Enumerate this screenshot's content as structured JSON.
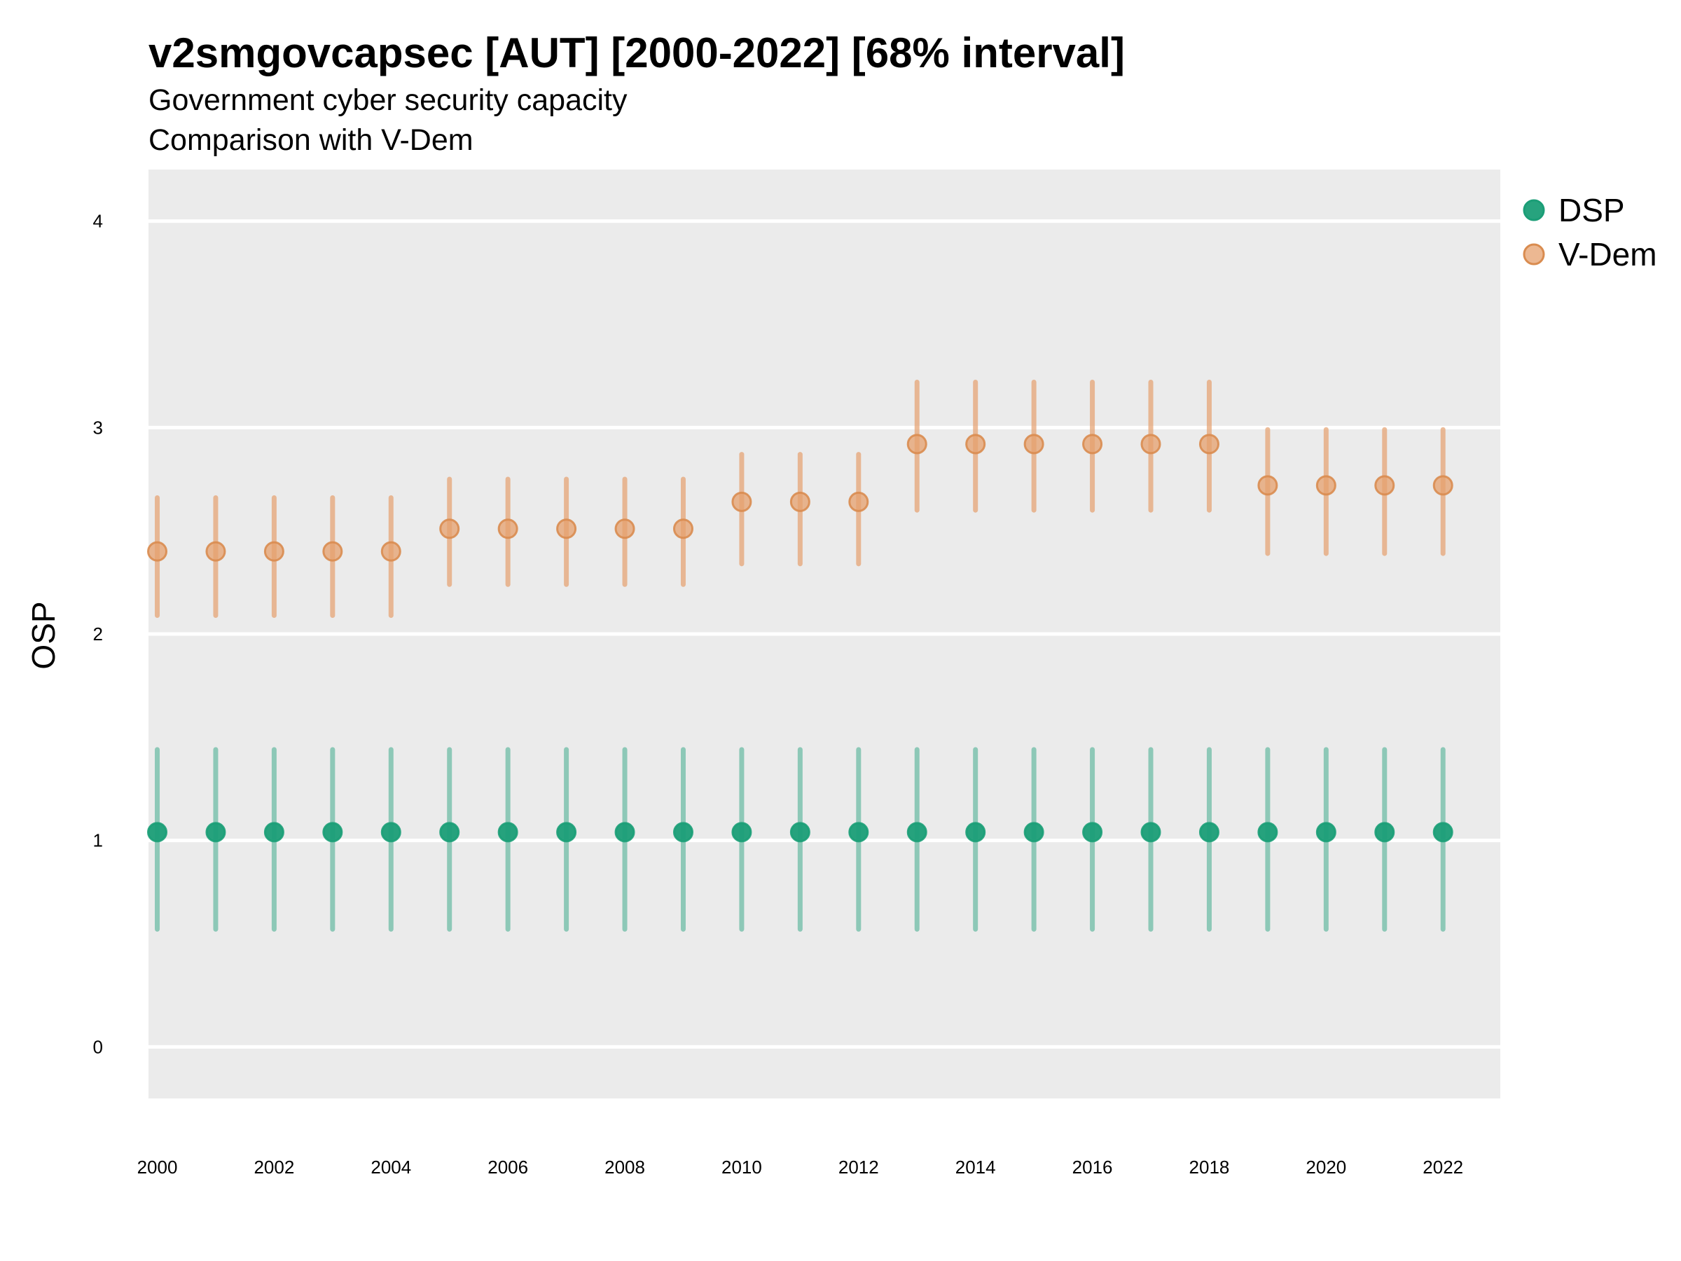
{
  "colors": {
    "panel": "#EBEBEB",
    "grid": "#FFFFFF",
    "dsp": "#1B9E77",
    "vdem": "#E6A06E",
    "vdem_stroke": "#D98C50"
  },
  "chart_data": {
    "type": "scatter",
    "title": "v2smgovcapsec [AUT] [2000-2022] [68% interval]",
    "subtitle": "Government cyber security capacity",
    "subtitle2": "Comparison with V-Dem",
    "xlabel": "",
    "ylabel": "OSP",
    "ylim": [
      -0.25,
      4.25
    ],
    "yticks": [
      0,
      1,
      2,
      3,
      4
    ],
    "xlim": [
      1999.85,
      2022.98
    ],
    "xticks": [
      2000,
      2002,
      2004,
      2006,
      2008,
      2010,
      2012,
      2014,
      2016,
      2018,
      2020,
      2022
    ],
    "grid": true,
    "legend_position": "right-top",
    "series": [
      {
        "name": "DSP",
        "color": "#1B9E77",
        "x": [
          2000,
          2001,
          2002,
          2003,
          2004,
          2005,
          2006,
          2007,
          2008,
          2009,
          2010,
          2011,
          2012,
          2013,
          2014,
          2015,
          2016,
          2017,
          2018,
          2019,
          2020,
          2021,
          2022
        ],
        "y": [
          1.04,
          1.04,
          1.04,
          1.04,
          1.04,
          1.04,
          1.04,
          1.04,
          1.04,
          1.04,
          1.04,
          1.04,
          1.04,
          1.04,
          1.04,
          1.04,
          1.04,
          1.04,
          1.04,
          1.04,
          1.04,
          1.04,
          1.04
        ],
        "low": [
          0.57,
          0.57,
          0.57,
          0.57,
          0.57,
          0.57,
          0.57,
          0.57,
          0.57,
          0.57,
          0.57,
          0.57,
          0.57,
          0.57,
          0.57,
          0.57,
          0.57,
          0.57,
          0.57,
          0.57,
          0.57,
          0.57,
          0.57
        ],
        "high": [
          1.44,
          1.44,
          1.44,
          1.44,
          1.44,
          1.44,
          1.44,
          1.44,
          1.44,
          1.44,
          1.44,
          1.44,
          1.44,
          1.44,
          1.44,
          1.44,
          1.44,
          1.44,
          1.44,
          1.44,
          1.44,
          1.44,
          1.44
        ]
      },
      {
        "name": "V-Dem",
        "color": "#E6A06E",
        "x": [
          2000,
          2001,
          2002,
          2003,
          2004,
          2005,
          2006,
          2007,
          2008,
          2009,
          2010,
          2011,
          2012,
          2013,
          2014,
          2015,
          2016,
          2017,
          2018,
          2019,
          2020,
          2021,
          2022
        ],
        "y": [
          2.4,
          2.4,
          2.4,
          2.4,
          2.4,
          2.51,
          2.51,
          2.51,
          2.51,
          2.51,
          2.64,
          2.64,
          2.64,
          2.92,
          2.92,
          2.92,
          2.92,
          2.92,
          2.92,
          2.72,
          2.72,
          2.72,
          2.72
        ],
        "low": [
          2.09,
          2.09,
          2.09,
          2.09,
          2.09,
          2.24,
          2.24,
          2.24,
          2.24,
          2.24,
          2.34,
          2.34,
          2.34,
          2.6,
          2.6,
          2.6,
          2.6,
          2.6,
          2.6,
          2.39,
          2.39,
          2.39,
          2.39
        ],
        "high": [
          2.66,
          2.66,
          2.66,
          2.66,
          2.66,
          2.75,
          2.75,
          2.75,
          2.75,
          2.75,
          2.87,
          2.87,
          2.87,
          3.22,
          3.22,
          3.22,
          3.22,
          3.22,
          3.22,
          2.99,
          2.99,
          2.99,
          2.99
        ]
      }
    ]
  }
}
